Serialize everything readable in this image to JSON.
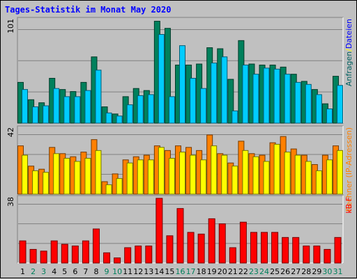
{
  "title": "Tages-Statistik im Monat May 2020",
  "chart_data": [
    {
      "type": "bar",
      "panel": "requests",
      "ymax_label": "101",
      "ylim": [
        0,
        101
      ],
      "categories": [
        "1",
        "2",
        "3",
        "4",
        "5",
        "6",
        "7",
        "8",
        "9",
        "10",
        "11",
        "12",
        "13",
        "14",
        "15",
        "16",
        "17",
        "18",
        "19",
        "20",
        "21",
        "22",
        "23",
        "24",
        "25",
        "26",
        "27",
        "28",
        "29",
        "30",
        "31"
      ],
      "weekend_days": [
        "2",
        "3",
        "9",
        "10",
        "16",
        "17",
        "23",
        "24",
        "30",
        "31"
      ],
      "legend": [
        {
          "name": "Anfragen",
          "color": "#006060"
        },
        {
          "name": "/",
          "color": "#ffff00"
        },
        {
          "name": "Dateien",
          "color": "#0000ff"
        }
      ],
      "series": [
        {
          "name": "Anfragen",
          "color": "#00805c",
          "values": [
            40,
            23,
            20,
            44,
            33,
            31,
            40,
            65,
            16,
            9,
            26,
            34,
            32,
            100,
            93,
            57,
            57,
            58,
            74,
            73,
            43,
            81,
            58,
            57,
            57,
            55,
            48,
            41,
            33,
            19,
            46
          ]
        },
        {
          "name": "Dateien",
          "color": "#00ccff",
          "values": [
            33,
            16,
            17,
            34,
            26,
            26,
            32,
            52,
            10,
            7,
            18,
            27,
            28,
            87,
            26,
            76,
            44,
            34,
            59,
            65,
            12,
            57,
            48,
            54,
            53,
            48,
            40,
            38,
            28,
            14,
            37
          ]
        }
      ]
    },
    {
      "type": "bar",
      "panel": "sites",
      "ymax_label": "42",
      "ylim": [
        0,
        42
      ],
      "legend": [
        {
          "name": "Rechner (IP-Adressen)",
          "color": "#ff8000"
        }
      ],
      "series": [
        {
          "name": "Rechner (IP-Adressen)",
          "values": [
            31,
            18,
            16,
            30,
            26,
            24,
            27,
            35,
            8,
            13,
            22,
            24,
            25,
            31,
            28,
            31,
            30,
            28,
            38,
            26,
            20,
            34,
            26,
            25,
            33,
            37,
            29,
            25,
            19,
            25,
            31
          ]
        },
        {
          "name": "",
          "color": "#ffff00",
          "values": [
            25,
            15,
            14,
            26,
            23,
            21,
            23,
            28,
            6,
            10,
            20,
            22,
            22,
            30,
            23,
            27,
            25,
            22,
            31,
            25,
            18,
            28,
            24,
            21,
            32,
            27,
            25,
            21,
            15,
            22,
            28
          ]
        }
      ]
    },
    {
      "type": "bar",
      "panel": "kbytes",
      "ymax_label": "38",
      "ylim": [
        0,
        38
      ],
      "legend": [
        {
          "name": "kB F",
          "color": "#ff0000"
        }
      ],
      "series": [
        {
          "name": "kB F",
          "color": "#ff0000",
          "values": [
            13,
            8,
            7,
            13,
            11,
            10,
            13,
            20,
            6,
            3,
            9,
            10,
            10,
            38,
            16,
            32,
            18,
            17,
            26,
            23,
            9,
            24,
            18,
            18,
            18,
            15,
            15,
            10,
            10,
            8,
            15
          ]
        }
      ]
    }
  ]
}
